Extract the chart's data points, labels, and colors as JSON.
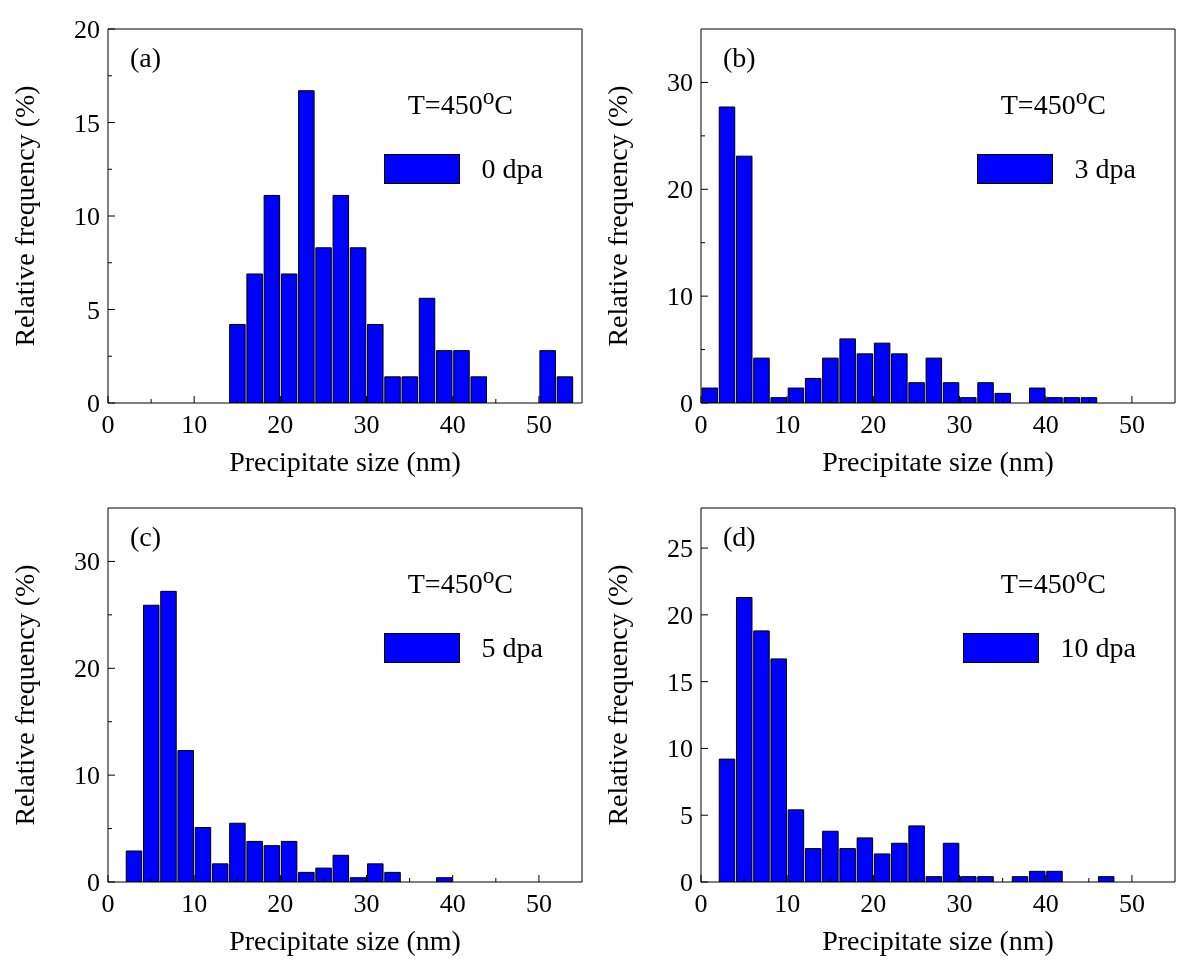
{
  "chart_data": [
    {
      "type": "histogram",
      "xlabel": "Precipitate size (nm)",
      "ylabel": "Relative frequency (%)",
      "legend": "top right",
      "annotations": [
        "(a)",
        "T=450$^{o}$C"
      ],
      "bins": [
        0,
        2,
        4,
        6,
        8,
        10,
        12,
        14,
        16,
        18,
        20,
        22,
        24,
        26,
        28,
        30,
        32,
        34,
        36,
        38,
        40,
        42,
        44,
        46,
        48,
        50,
        52,
        54
      ],
      "series": [
        {
          "name": "0 dpa",
          "color": "#0000ff",
          "values": [
            0,
            0,
            0,
            0,
            0,
            0,
            0,
            4.2,
            6.9,
            11.1,
            6.9,
            16.7,
            8.3,
            11.1,
            8.3,
            4.2,
            1.4,
            1.4,
            5.6,
            2.8,
            2.8,
            1.4,
            0,
            0,
            0,
            2.8,
            1.4
          ]
        }
      ],
      "xlim": [
        0,
        55
      ],
      "xticks": [
        0,
        {
          "value": 5,
          "label": null
        },
        10,
        {
          "value": 15,
          "label": null
        },
        20,
        {
          "value": 25,
          "label": null
        },
        30,
        {
          "value": 35,
          "label": null
        },
        40,
        {
          "value": 45,
          "label": null
        },
        50
      ],
      "ylim": [
        0,
        20
      ],
      "yticks": [
        0,
        {
          "value": 2.5,
          "label": null
        },
        5,
        {
          "value": 7.5,
          "label": null
        },
        10,
        {
          "value": 12.5,
          "label": null
        },
        15,
        {
          "value": 17.5,
          "label": null
        },
        20
      ]
    },
    {
      "type": "histogram",
      "xlabel": "Precipitate size (nm)",
      "ylabel": "Relative frequency (%)",
      "legend": "top right",
      "annotations": [
        "(b)",
        "T=450$^{o}$C"
      ],
      "bins": [
        0,
        2,
        4,
        6,
        8,
        10,
        12,
        14,
        16,
        18,
        20,
        22,
        24,
        26,
        28,
        30,
        32,
        34,
        36,
        38,
        40,
        42,
        44,
        46,
        48,
        50,
        52,
        54
      ],
      "series": [
        {
          "name": "3 dpa",
          "color": "#0000ff",
          "values": [
            1.4,
            27.7,
            23.1,
            4.2,
            0.5,
            1.4,
            2.3,
            4.2,
            6.0,
            4.6,
            5.6,
            4.6,
            1.9,
            4.2,
            1.9,
            0.5,
            1.9,
            0.9,
            0,
            1.4,
            0.5,
            0.5,
            0.5,
            0,
            0,
            0,
            0
          ]
        }
      ],
      "xlim": [
        0,
        55
      ],
      "xticks": [
        0,
        {
          "value": 5,
          "label": null
        },
        10,
        {
          "value": 15,
          "label": null
        },
        20,
        {
          "value": 25,
          "label": null
        },
        30,
        {
          "value": 35,
          "label": null
        },
        40,
        {
          "value": 45,
          "label": null
        },
        50
      ],
      "ylim": [
        0,
        35
      ],
      "yticks": [
        0,
        {
          "value": 5,
          "label": null
        },
        10,
        {
          "value": 15,
          "label": null
        },
        20,
        {
          "value": 25,
          "label": null
        },
        30
      ]
    },
    {
      "type": "histogram",
      "xlabel": "Precipitate size (nm)",
      "ylabel": "Relative frequency (%)",
      "legend": "top right",
      "annotations": [
        "(c)",
        "T=450$^{o}$C"
      ],
      "bins": [
        0,
        2,
        4,
        6,
        8,
        10,
        12,
        14,
        16,
        18,
        20,
        22,
        24,
        26,
        28,
        30,
        32,
        34,
        36,
        38,
        40,
        42,
        44,
        46,
        48,
        50,
        52,
        54
      ],
      "series": [
        {
          "name": "5 dpa",
          "color": "#0000ff",
          "values": [
            0,
            2.9,
            25.9,
            27.2,
            12.3,
            5.1,
            1.7,
            5.5,
            3.8,
            3.4,
            3.8,
            0.9,
            1.3,
            2.5,
            0.4,
            1.7,
            0.9,
            0,
            0,
            0.4,
            0,
            0,
            0,
            0,
            0,
            0,
            0
          ]
        }
      ],
      "xlim": [
        0,
        55
      ],
      "xticks": [
        0,
        {
          "value": 5,
          "label": null
        },
        10,
        {
          "value": 15,
          "label": null
        },
        20,
        {
          "value": 25,
          "label": null
        },
        30,
        {
          "value": 35,
          "label": null
        },
        40,
        {
          "value": 45,
          "label": null
        },
        50
      ],
      "ylim": [
        0,
        35
      ],
      "yticks": [
        0,
        {
          "value": 5,
          "label": null
        },
        10,
        {
          "value": 15,
          "label": null
        },
        20,
        {
          "value": 25,
          "label": null
        },
        30
      ]
    },
    {
      "type": "histogram",
      "xlabel": "Precipitate size (nm)",
      "ylabel": "Relative frequency (%)",
      "legend": "top right",
      "annotations": [
        "(d)",
        "T=450$^{o}$C"
      ],
      "bins": [
        0,
        2,
        4,
        6,
        8,
        10,
        12,
        14,
        16,
        18,
        20,
        22,
        24,
        26,
        28,
        30,
        32,
        34,
        36,
        38,
        40,
        42,
        44,
        46,
        48,
        50,
        52,
        54
      ],
      "series": [
        {
          "name": "10 dpa",
          "color": "#0000ff",
          "values": [
            0,
            9.2,
            21.3,
            18.8,
            16.7,
            5.4,
            2.5,
            3.8,
            2.5,
            3.3,
            2.1,
            2.9,
            4.2,
            0.4,
            2.9,
            0.4,
            0.4,
            0,
            0.4,
            0.8,
            0.8,
            0,
            0,
            0.4,
            0,
            0,
            0
          ]
        }
      ],
      "xlim": [
        0,
        55
      ],
      "xticks": [
        0,
        {
          "value": 5,
          "label": null
        },
        10,
        {
          "value": 15,
          "label": null
        },
        20,
        {
          "value": 25,
          "label": null
        },
        30,
        {
          "value": 35,
          "label": null
        },
        40,
        {
          "value": 45,
          "label": null
        },
        50
      ],
      "ylim": [
        0,
        28
      ],
      "yticks": [
        0,
        5,
        10,
        15,
        20,
        25
      ]
    }
  ]
}
